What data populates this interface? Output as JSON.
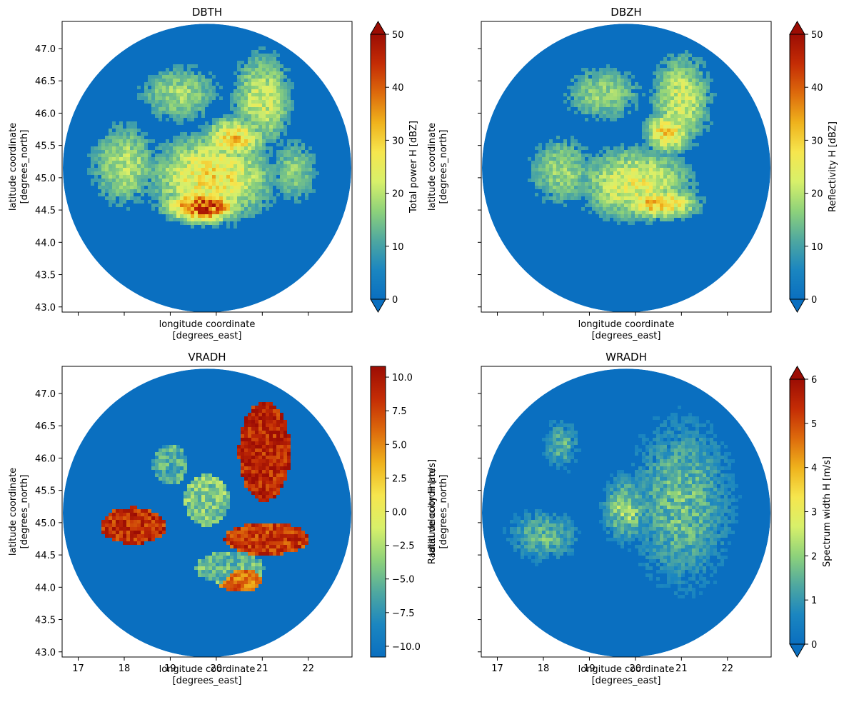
{
  "chart_data": [
    {
      "type": "heatmap",
      "title": "DBTH",
      "xlabel": [
        "longitude coordinate",
        "[degrees_east]"
      ],
      "ylabel": [
        "latitude coordinate",
        "[degrees_north]"
      ],
      "xlim": [
        16.65,
        22.95
      ],
      "ylim": [
        42.92,
        47.42
      ],
      "xticks": [
        17,
        18,
        19,
        20,
        21,
        22
      ],
      "xticklabels": [],
      "yticks": [
        43.0,
        43.5,
        44.0,
        44.5,
        45.0,
        45.5,
        46.0,
        46.5,
        47.0
      ],
      "yticklabels": [
        "43.0",
        "43.5",
        "44.0",
        "44.5",
        "45.0",
        "45.5",
        "46.0",
        "46.5",
        "47.0"
      ],
      "colorbar": {
        "label": "Total power H [dBZ]",
        "colormap": [
          "#0a6fc0",
          "#1b86c0",
          "#4fa8a0",
          "#8ed27a",
          "#d8f06a",
          "#f6e64e",
          "#efb21c",
          "#dd6a0c",
          "#c42c05",
          "#9c0d04"
        ],
        "vmin": 0,
        "vmax": 50,
        "ticks": [
          0,
          10,
          20,
          30,
          40,
          50
        ],
        "ticklabels": [
          "0",
          "10",
          "20",
          "30",
          "40",
          "50"
        ],
        "extend": "both"
      },
      "radar": {
        "center_lon": 19.8,
        "center_lat": 45.15,
        "background_value": 0
      },
      "dominant_values": [
        {
          "region": "central",
          "value": 28
        },
        {
          "region": "south of center",
          "value": 45
        },
        {
          "region": "northeast",
          "value": 20
        },
        {
          "region": "outer ring",
          "value": 0
        }
      ]
    },
    {
      "type": "heatmap",
      "title": "DBZH",
      "xlabel": [
        "longitude coordinate",
        "[degrees_east]"
      ],
      "ylabel": [
        "latitude coordinate",
        "[degrees_north]"
      ],
      "xlim": [
        16.65,
        22.95
      ],
      "ylim": [
        42.92,
        47.42
      ],
      "xticks": [
        17,
        18,
        19,
        20,
        21,
        22
      ],
      "xticklabels": [],
      "yticks": [
        43.0,
        43.5,
        44.0,
        44.5,
        45.0,
        45.5,
        46.0,
        46.5,
        47.0
      ],
      "yticklabels": [],
      "colorbar": {
        "label": "Reflectivity H [dBZ]",
        "colormap": [
          "#0a6fc0",
          "#1b86c0",
          "#4fa8a0",
          "#8ed27a",
          "#d8f06a",
          "#f6e64e",
          "#efb21c",
          "#dd6a0c",
          "#c42c05",
          "#9c0d04"
        ],
        "vmin": 0,
        "vmax": 50,
        "ticks": [
          0,
          10,
          20,
          30,
          40,
          50
        ],
        "ticklabels": [
          "0",
          "10",
          "20",
          "30",
          "40",
          "50"
        ],
        "extend": "both"
      },
      "radar": {
        "center_lon": 19.8,
        "center_lat": 45.15,
        "background_value": 0
      },
      "dominant_values": [
        {
          "region": "central",
          "value": 25
        },
        {
          "region": "south of center",
          "value": 32
        },
        {
          "region": "northeast",
          "value": 22
        },
        {
          "region": "outer ring",
          "value": 0
        }
      ]
    },
    {
      "type": "heatmap",
      "title": "VRADH",
      "xlabel": [
        "longitude coordinate",
        "[degrees_east]"
      ],
      "ylabel": [
        "latitude coordinate",
        "[degrees_north]"
      ],
      "xlim": [
        16.65,
        22.95
      ],
      "ylim": [
        42.92,
        47.42
      ],
      "xticks": [
        17,
        18,
        19,
        20,
        21,
        22
      ],
      "xticklabels": [
        "17",
        "18",
        "19",
        "20",
        "21",
        "22"
      ],
      "yticks": [
        43.0,
        43.5,
        44.0,
        44.5,
        45.0,
        45.5,
        46.0,
        46.5,
        47.0
      ],
      "yticklabels": [
        "43.0",
        "43.5",
        "44.0",
        "44.5",
        "45.0",
        "45.5",
        "46.0",
        "46.5",
        "47.0"
      ],
      "colorbar": {
        "label": "Radial velocity H [m/s]",
        "colormap": [
          "#0a6fc0",
          "#1b86c0",
          "#4fa8a0",
          "#8ed27a",
          "#d8f06a",
          "#f6e64e",
          "#efb21c",
          "#dd6a0c",
          "#c42c05",
          "#9c0d04"
        ],
        "vmin": -10.8,
        "vmax": 10.8,
        "ticks": [
          -10.0,
          -7.5,
          -5.0,
          -2.5,
          0.0,
          2.5,
          5.0,
          7.5,
          10.0
        ],
        "ticklabels": [
          "−10.0",
          "−7.5",
          "−5.0",
          "−2.5",
          "0.0",
          "2.5",
          "5.0",
          "7.5",
          "10.0"
        ],
        "extend": "neither"
      },
      "radar": {
        "center_lon": 19.8,
        "center_lat": 45.15,
        "background_value": -10.8
      },
      "dominant_values": [
        {
          "region": "northeast",
          "value": 9
        },
        {
          "region": "west",
          "value": 8
        },
        {
          "region": "southeast",
          "value": 8
        },
        {
          "region": "south",
          "value": 6
        },
        {
          "region": "north of center",
          "value": -4
        },
        {
          "region": "outer ring",
          "value": -10.8
        }
      ]
    },
    {
      "type": "heatmap",
      "title": "WRADH",
      "xlabel": [
        "longitude coordinate",
        "[degrees_east]"
      ],
      "ylabel": [
        "latitude coordinate",
        "[degrees_north]"
      ],
      "xlim": [
        16.65,
        22.95
      ],
      "ylim": [
        42.92,
        47.42
      ],
      "xticks": [
        17,
        18,
        19,
        20,
        21,
        22
      ],
      "xticklabels": [
        "17",
        "18",
        "19",
        "20",
        "21",
        "22"
      ],
      "yticks": [
        43.0,
        43.5,
        44.0,
        44.5,
        45.0,
        45.5,
        46.0,
        46.5,
        47.0
      ],
      "yticklabels": [],
      "colorbar": {
        "label": "Spectrum width H [m/s]",
        "colormap": [
          "#0a6fc0",
          "#1b86c0",
          "#4fa8a0",
          "#8ed27a",
          "#d8f06a",
          "#f6e64e",
          "#efb21c",
          "#dd6a0c",
          "#c42c05",
          "#9c0d04"
        ],
        "vmin": 0,
        "vmax": 6,
        "ticks": [
          0,
          1,
          2,
          3,
          4,
          5,
          6
        ],
        "ticklabels": [
          "0",
          "1",
          "2",
          "3",
          "4",
          "5",
          "6"
        ],
        "extend": "both"
      },
      "radar": {
        "center_lon": 19.8,
        "center_lat": 45.15,
        "background_value": 0
      },
      "dominant_values": [
        {
          "region": "east",
          "value": 1.5
        },
        {
          "region": "center",
          "value": 2
        },
        {
          "region": "west",
          "value": 1.5
        },
        {
          "region": "outer ring",
          "value": 0
        }
      ]
    }
  ]
}
